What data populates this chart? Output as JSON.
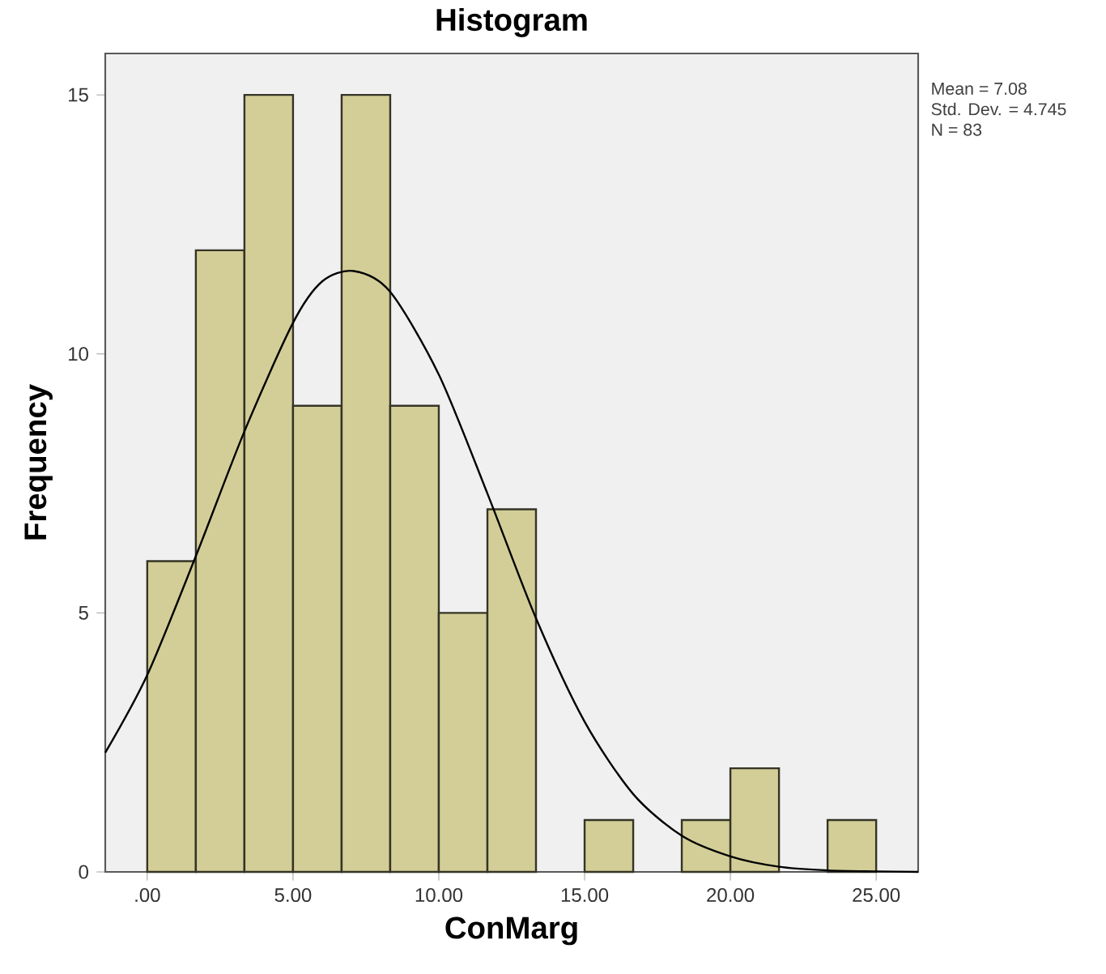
{
  "chart_data": {
    "type": "histogram",
    "title": "Histogram",
    "xlabel": "ConMarg",
    "ylabel": "Frequency",
    "series": [
      {
        "color": "#d3ce97",
        "bins": [
          0,
          1.667,
          3.333,
          5,
          6.667,
          8.333,
          10,
          11.667,
          13.333,
          15,
          16.667,
          18.333,
          20,
          21.667,
          23.333,
          25
        ],
        "values": [
          6,
          12,
          15,
          9,
          15,
          9,
          5,
          7,
          0,
          1,
          0,
          1,
          2,
          0,
          1
        ]
      },
      {
        "type": "line",
        "color": "#000000",
        "x": [
          -1.44,
          0,
          1.67,
          3.33,
          5,
          6,
          7.08,
          8.33,
          10,
          11.67,
          13.33,
          15,
          16.67,
          18.33,
          20,
          21.67,
          23.33,
          25,
          26.44
        ],
        "values": [
          2.3,
          3.8,
          6.1,
          8.5,
          10.6,
          11.4,
          11.6,
          11.2,
          9.6,
          7.3,
          4.9,
          2.9,
          1.5,
          0.7,
          0.3,
          0.1,
          0.03,
          0.01,
          0
        ]
      }
    ],
    "xlim": [
      -1.44,
      26.44
    ],
    "ylim": [
      0,
      15.8
    ],
    "xticks": [
      {
        "value": 0,
        "label": ".00"
      },
      {
        "value": 5,
        "label": "5.00"
      },
      {
        "value": 10,
        "label": "10.00"
      },
      {
        "value": 15,
        "label": "15.00"
      },
      {
        "value": 20,
        "label": "20.00"
      },
      {
        "value": 25,
        "label": "25.00"
      }
    ],
    "yticks": [
      0,
      5,
      10,
      15
    ],
    "marker": "none",
    "line_style": "solid",
    "annotations": [
      "Mean = 7.08",
      "Std. Dev. = 4.745",
      "N = 83"
    ]
  }
}
